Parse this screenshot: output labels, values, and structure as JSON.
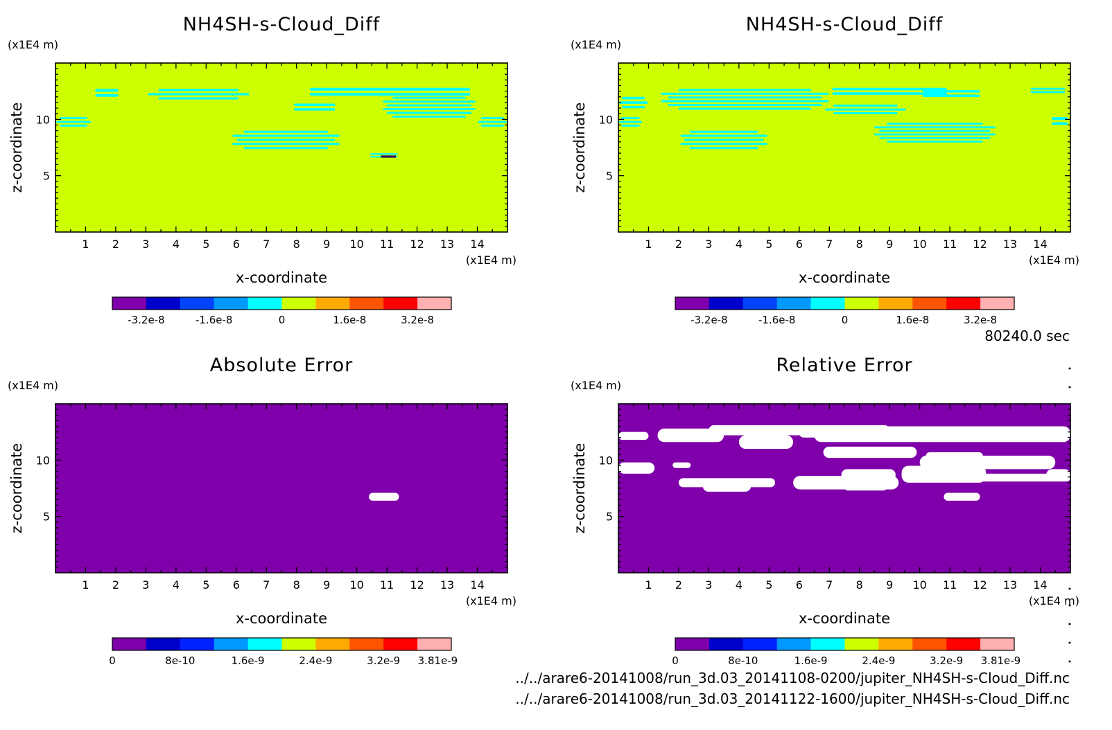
{
  "time_label": "80240.0 sec",
  "files": [
    "../../arare6-20141008/run_3d.03_20141108-0200/jupiter_NH4SH-s-Cloud_Diff.nc",
    "../../arare6-20141008/run_3d.03_20141122-1600/jupiter_NH4SH-s-Cloud_Diff.nc"
  ],
  "colors": {
    "background": "#ccff00",
    "cyan": "#00ffff",
    "purple": "#7f00aa",
    "white": "#ffffff"
  },
  "chart_data": [
    {
      "type": "heatmap",
      "title": "NH4SH-s-Cloud_Diff",
      "xlabel": "x-coordinate",
      "ylabel": "z-coordinate",
      "x_unit": "(x1E4 m)",
      "z_unit": "(x1E4 m)",
      "xlim": [
        0,
        15
      ],
      "zlim": [
        0,
        15
      ],
      "x_ticks": [
        1,
        2,
        3,
        4,
        5,
        6,
        7,
        8,
        9,
        10,
        11,
        12,
        13,
        14
      ],
      "z_ticks": [
        5,
        10
      ],
      "colorbar": {
        "colors": [
          "#7f00aa",
          "#0000cc",
          "#0044ff",
          "#0099ff",
          "#00ffff",
          "#ccff00",
          "#ffaa00",
          "#ff5500",
          "#ff0000",
          "#ffb0b0"
        ],
        "tick_labels": [
          "-3.2e-8",
          "-1.6e-8",
          "0",
          "1.6e-8",
          "3.2e-8"
        ],
        "tick_positions": [
          1,
          3,
          5,
          7,
          9
        ]
      },
      "regions": [
        {
          "x": 0.0,
          "z": 9.2,
          "w": 1.2,
          "h": 1.0
        },
        {
          "x": 1.2,
          "z": 11.8,
          "w": 1.0,
          "h": 0.9
        },
        {
          "x": 3.0,
          "z": 11.6,
          "w": 3.5,
          "h": 1.1
        },
        {
          "x": 7.6,
          "z": 11.9,
          "w": 7.0,
          "h": 0.9
        },
        {
          "x": 7.7,
          "z": 10.6,
          "w": 1.8,
          "h": 0.8
        },
        {
          "x": 10.8,
          "z": 10.0,
          "w": 3.2,
          "h": 2.0
        },
        {
          "x": 14.0,
          "z": 9.2,
          "w": 1.0,
          "h": 1.0
        },
        {
          "x": 5.8,
          "z": 7.2,
          "w": 3.7,
          "h": 1.8
        },
        {
          "x": 10.3,
          "z": 6.5,
          "w": 1.2,
          "h": 0.5
        }
      ],
      "dark_spot": {
        "x": 10.8,
        "z": 6.6,
        "w": 0.5,
        "h": 0.2
      }
    },
    {
      "type": "heatmap",
      "title": "NH4SH-s-Cloud_Diff",
      "xlabel": "x-coordinate",
      "ylabel": "z-coordinate",
      "x_unit": "(x1E4 m)",
      "z_unit": "(x1E4 m)",
      "xlim": [
        0,
        15
      ],
      "zlim": [
        0,
        15
      ],
      "x_ticks": [
        1,
        2,
        3,
        4,
        5,
        6,
        7,
        8,
        9,
        10,
        11,
        12,
        13,
        14
      ],
      "z_ticks": [
        5,
        10
      ],
      "colorbar": {
        "colors": [
          "#7f00aa",
          "#0000cc",
          "#0044ff",
          "#0099ff",
          "#00ffff",
          "#ccff00",
          "#ffaa00",
          "#ff5500",
          "#ff0000",
          "#ffb0b0"
        ],
        "tick_labels": [
          "-3.2e-8",
          "-1.6e-8",
          "0",
          "1.6e-8",
          "3.2e-8"
        ],
        "tick_positions": [
          1,
          3,
          5,
          7,
          9
        ]
      },
      "regions": [
        {
          "x": 0.0,
          "z": 10.8,
          "w": 1.0,
          "h": 1.2
        },
        {
          "x": 1.3,
          "z": 10.7,
          "w": 5.8,
          "h": 2.0
        },
        {
          "x": 6.5,
          "z": 12.0,
          "w": 5.0,
          "h": 0.8
        },
        {
          "x": 6.8,
          "z": 10.3,
          "w": 2.8,
          "h": 1.0
        },
        {
          "x": 9.8,
          "z": 11.8,
          "w": 2.5,
          "h": 0.8
        },
        {
          "x": 0.0,
          "z": 9.2,
          "w": 0.8,
          "h": 1.0
        },
        {
          "x": 2.0,
          "z": 7.2,
          "w": 3.0,
          "h": 1.8
        },
        {
          "x": 8.4,
          "z": 7.8,
          "w": 4.2,
          "h": 1.9
        },
        {
          "x": 13.5,
          "z": 12.2,
          "w": 1.5,
          "h": 0.6
        },
        {
          "x": 14.3,
          "z": 9.3,
          "w": 0.7,
          "h": 0.9
        }
      ]
    },
    {
      "type": "heatmap",
      "title": "Absolute Error",
      "xlabel": "x-coordinate",
      "ylabel": "z-coordinate",
      "x_unit": "(x1E4 m)",
      "z_unit": "(x1E4 m)",
      "xlim": [
        0,
        15
      ],
      "zlim": [
        0,
        15
      ],
      "x_ticks": [
        1,
        2,
        3,
        4,
        5,
        6,
        7,
        8,
        9,
        10,
        11,
        12,
        13,
        14
      ],
      "z_ticks": [
        5,
        10
      ],
      "colorbar": {
        "colors": [
          "#7f00aa",
          "#0000cc",
          "#0022ff",
          "#0099ff",
          "#00ffff",
          "#ccff00",
          "#ffaa00",
          "#ff5500",
          "#ff0000",
          "#ffb0b0"
        ],
        "tick_labels": [
          "0",
          "8e-10",
          "1.6e-9",
          "2.4e-9",
          "3.2e-9",
          "3.81e-9"
        ],
        "tick_positions": [
          0,
          2,
          4,
          6,
          8,
          9.6
        ]
      },
      "regions": [
        {
          "x": 10.4,
          "z": 6.4,
          "w": 1.0,
          "h": 0.7
        }
      ]
    },
    {
      "type": "heatmap",
      "title": "Relative Error",
      "xlabel": "x-coordinate",
      "ylabel": "z-coordinate",
      "x_unit": "(x1E4 m)",
      "z_unit": "(x1E4 m)",
      "xlim": [
        0,
        15
      ],
      "zlim": [
        0,
        15
      ],
      "x_ticks": [
        1,
        2,
        3,
        4,
        5,
        6,
        7,
        8,
        9,
        10,
        11,
        12,
        13,
        14
      ],
      "z_ticks": [
        5,
        10
      ],
      "colorbar": {
        "colors": [
          "#7f00aa",
          "#0000cc",
          "#0022ff",
          "#0099ff",
          "#00ffff",
          "#ccff00",
          "#ffaa00",
          "#ff5500",
          "#ff0000",
          "#ffb0b0"
        ],
        "tick_labels": [
          "0",
          "8e-10",
          "1.6e-9",
          "2.4e-9",
          "3.2e-9",
          "3.81e-9"
        ],
        "tick_positions": [
          0,
          2,
          4,
          6,
          8,
          9.6
        ]
      },
      "regions": [
        {
          "x": 0.0,
          "z": 11.8,
          "w": 1.0,
          "h": 0.7
        },
        {
          "x": 1.3,
          "z": 11.6,
          "w": 2.2,
          "h": 1.2
        },
        {
          "x": 3.0,
          "z": 12.2,
          "w": 6.0,
          "h": 0.9
        },
        {
          "x": 4.0,
          "z": 11.0,
          "w": 1.8,
          "h": 1.2
        },
        {
          "x": 6.0,
          "z": 12.0,
          "w": 3.0,
          "h": 0.8
        },
        {
          "x": 6.5,
          "z": 11.6,
          "w": 8.5,
          "h": 1.4
        },
        {
          "x": 6.8,
          "z": 10.2,
          "w": 3.1,
          "h": 1.0
        },
        {
          "x": 10.2,
          "z": 10.0,
          "w": 1.9,
          "h": 0.7
        },
        {
          "x": 10.0,
          "z": 9.2,
          "w": 4.5,
          "h": 1.2
        },
        {
          "x": 0.0,
          "z": 8.8,
          "w": 1.2,
          "h": 1.0
        },
        {
          "x": 1.8,
          "z": 9.3,
          "w": 0.6,
          "h": 0.5
        },
        {
          "x": 2.0,
          "z": 7.6,
          "w": 3.2,
          "h": 0.8
        },
        {
          "x": 2.8,
          "z": 7.2,
          "w": 1.6,
          "h": 1.0
        },
        {
          "x": 5.8,
          "z": 7.4,
          "w": 3.5,
          "h": 1.2
        },
        {
          "x": 7.4,
          "z": 8.2,
          "w": 1.8,
          "h": 1.0
        },
        {
          "x": 9.4,
          "z": 8.0,
          "w": 2.8,
          "h": 1.5
        },
        {
          "x": 10.1,
          "z": 8.1,
          "w": 4.9,
          "h": 0.7
        },
        {
          "x": 14.2,
          "z": 8.2,
          "w": 0.8,
          "h": 1.0
        },
        {
          "x": 7.5,
          "z": 7.3,
          "w": 1.4,
          "h": 0.6
        },
        {
          "x": 10.8,
          "z": 6.4,
          "w": 1.2,
          "h": 0.7
        }
      ]
    }
  ]
}
